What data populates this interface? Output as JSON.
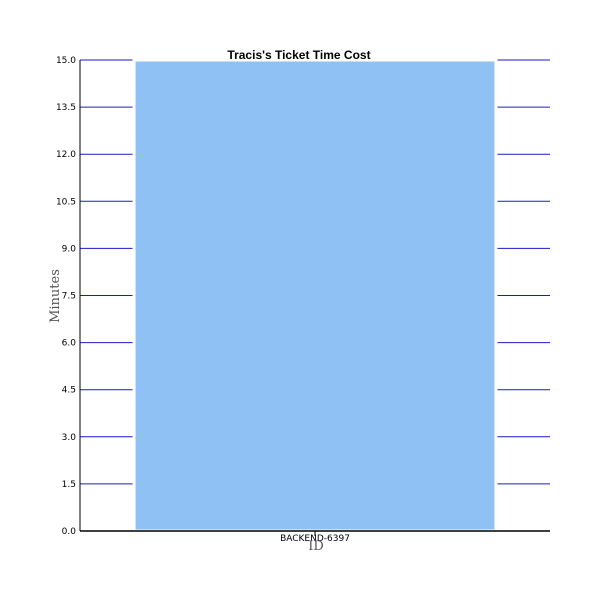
{
  "chart_data": {
    "type": "bar",
    "title": "Tracis's Ticket Time Cost",
    "xlabel": "ID",
    "ylabel": "Minutes",
    "categories": [
      "BACKEND-6397"
    ],
    "values": [
      15.0
    ],
    "ylim": [
      0,
      15
    ],
    "yticks": [
      "0.0",
      "1.5",
      "3.0",
      "4.5",
      "6.0",
      "7.5",
      "9.0",
      "10.5",
      "12.0",
      "13.5",
      "15.0"
    ],
    "grid": true,
    "legend": "none",
    "colors": {
      "bar": "#8fc1f4",
      "bar_outline": "#ffffff",
      "grid": "#1a1acc",
      "axis": "#000000"
    }
  }
}
